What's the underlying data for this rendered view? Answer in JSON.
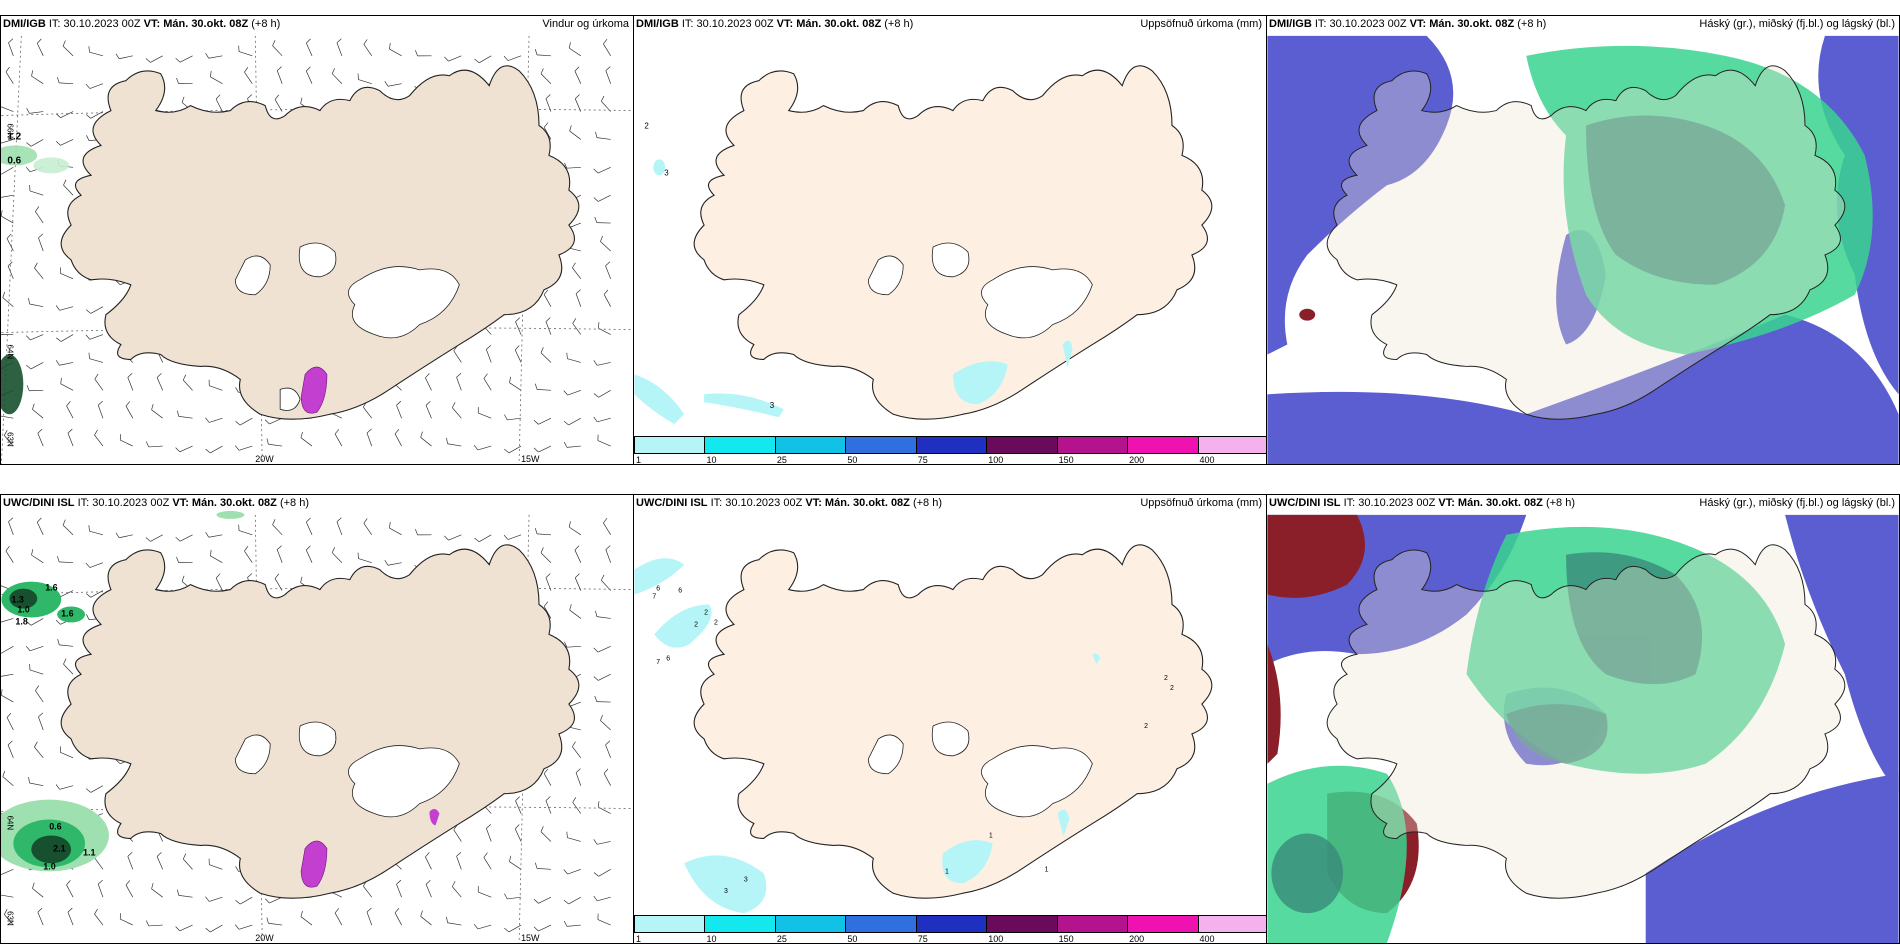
{
  "panels": [
    {
      "id": "p1",
      "source": "DMI/IGB",
      "it": "IT: 30.10.2023 00Z",
      "vt_label": "VT:",
      "vt": "Mán. 30.okt. 08Z",
      "offset": "(+8 h)",
      "title": "Vindur og úrkoma",
      "type": "wind"
    },
    {
      "id": "p2",
      "source": "DMI/IGB",
      "it": "IT: 30.10.2023 00Z",
      "vt_label": "VT:",
      "vt": "Mán. 30.okt. 08Z",
      "offset": "(+8 h)",
      "title": "Uppsöfnuð úrkoma (mm)",
      "type": "precip"
    },
    {
      "id": "p3",
      "source": "DMI/IGB",
      "it": "IT: 30.10.2023 00Z",
      "vt_label": "VT:",
      "vt": "Mán. 30.okt. 08Z",
      "offset": "(+8 h)",
      "title": "Háský (gr.), miðský (fj.bl.) og lágský (bl.)",
      "type": "cloud"
    },
    {
      "id": "p4",
      "source": "UWC/DINI ISL",
      "it": "IT: 30.10.2023 00Z",
      "vt_label": "VT:",
      "vt": "Mán. 30.okt. 08Z",
      "offset": "(+8 h)",
      "title": "",
      "type": "wind"
    },
    {
      "id": "p5",
      "source": "UWC/DINI ISL",
      "it": "IT: 30.10.2023 00Z",
      "vt_label": "VT:",
      "vt": "Mán. 30.okt. 08Z",
      "offset": "(+8 h)",
      "title": "Uppsöfnuð úrkoma (mm)",
      "type": "precip"
    },
    {
      "id": "p6",
      "source": "UWC/DINI ISL",
      "it": "IT: 30.10.2023 00Z",
      "vt_label": "VT:",
      "vt": "Mán. 30.okt. 08Z",
      "offset": "(+8 h)",
      "title": "Háský (gr.), miðský (fj.bl.) og lágský (bl.)",
      "type": "cloud"
    }
  ],
  "grid_labels": {
    "lon_20w": "20W",
    "lon_15w": "15W",
    "lat_66n": "66N",
    "lat_64n": "64N",
    "lat_63n": "63N"
  },
  "colorbar": {
    "ticks": [
      "1",
      "10",
      "25",
      "50",
      "75",
      "100",
      "150",
      "200",
      "400"
    ],
    "colors": [
      "#b6f5f7",
      "#12e8ee",
      "#12c2e6",
      "#2f6fe0",
      "#1f2fbf",
      "#6a0a5a",
      "#b5138e",
      "#f012b0",
      "#f5b0ee"
    ]
  },
  "precip_labels_top": [
    "2",
    "3",
    "3"
  ],
  "precip_labels_bottom": [
    "6",
    "6",
    "7",
    "7",
    "6",
    "2",
    "2",
    "2",
    "2",
    "2",
    "2",
    "1",
    "1",
    "1",
    "3",
    "3"
  ],
  "wind_labels_top": [
    "1.2",
    "0.6"
  ],
  "wind_labels_bottom": [
    "1.6",
    "1.3",
    "1.0",
    "1.8",
    "1.6",
    "0.6",
    "2.1",
    "1.1",
    "1.0"
  ],
  "colors": {
    "land": "#efe2d2",
    "land_precip": "#fdf0e2",
    "precip_light": "#b6f5f7",
    "green": "#2fd68a",
    "blue_cloud": "#5b5ed0",
    "red_cloud": "#8a1f2a"
  }
}
